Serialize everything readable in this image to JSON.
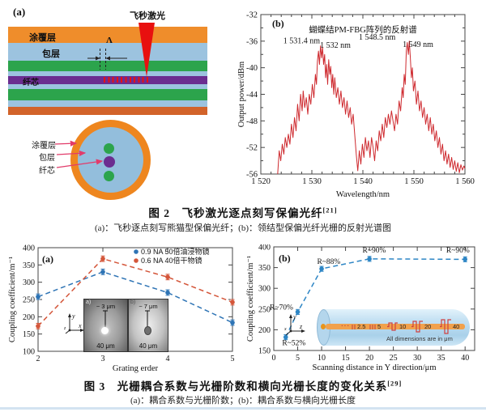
{
  "colors": {
    "coating_orange": "#EF8D2B",
    "coating_dark": "#D2632A",
    "cladding_blue": "#9CC3DF",
    "stress_green": "#2CA44C",
    "core_purple": "#6B2D90",
    "laser_red": "#E8100F",
    "spectrum_red": "#CE2A2F",
    "series_blue": "#2E74B5",
    "series_red": "#D4563A",
    "series_blue_b": "#2E86C5",
    "annotation_arrow_pink": "#E23B6A"
  },
  "fig2": {
    "panel_a_label": "(a)",
    "diagram": {
      "laser_label": "飞秒激光",
      "period_symbol": "Λ",
      "layer_coating": "涂覆层",
      "layer_cladding": "包层",
      "layer_core": "纤芯",
      "cross_coating": "涂覆层",
      "cross_cladding": "包层",
      "cross_core": "纤芯"
    },
    "caption": {
      "fig_no": "图 2",
      "title": "飞秒激光逐点刻写保偏光纤",
      "ref": "[21]",
      "sub": "(a)：飞秒逐点刻写熊猫型保偏光纤；(b)：领结型保偏光纤光栅的反射光谱图"
    }
  },
  "fig3": {
    "caption": {
      "fig_no": "图 3",
      "title": "光栅耦合系数与光栅阶数和横向光栅长度的变化关系",
      "ref": "[29]",
      "sub": "(a)：耦合系数与光栅阶数；(b)：耦合系数与横向光栅长度"
    }
  },
  "chart_data": [
    {
      "id": "pmfbg-reflection-spectrum",
      "type": "line",
      "panel_label": "(b)",
      "title": "蝴蝶结PM-FBG阵列的反射谱",
      "xlabel": "Wavelength/nm",
      "ylabel": "Output power/dBm",
      "xlim": [
        1520,
        1560
      ],
      "ylim": [
        -56,
        -32
      ],
      "xticks": [
        1520,
        1530,
        1540,
        1550,
        1560
      ],
      "xtick_labels": [
        "1 520",
        "1 530",
        "1 540",
        "1 550",
        "1 560"
      ],
      "yticks": [
        -32,
        -36,
        -40,
        -44,
        -48,
        -52,
        -56
      ],
      "grid": false,
      "legend": "none",
      "line_color": "#CE2A2F",
      "annotations": [
        {
          "text": "1 531.4 nm",
          "x": 1528.0,
          "y": -36.3
        },
        {
          "text": "1 532 nm",
          "x": 1534.6,
          "y": -37.0
        },
        {
          "text": "1 548.5 nm",
          "x": 1542.8,
          "y": -35.8
        },
        {
          "text": "1 549 nm",
          "x": 1550.8,
          "y": -36.9
        }
      ],
      "points": [
        [
          1523.3,
          -56
        ],
        [
          1523.6,
          -52.5
        ],
        [
          1523.9,
          -54
        ],
        [
          1524.2,
          -51.5
        ],
        [
          1524.5,
          -53
        ],
        [
          1524.8,
          -50.5
        ],
        [
          1525.1,
          -52
        ],
        [
          1525.4,
          -50
        ],
        [
          1525.7,
          -51.5
        ],
        [
          1526,
          -48.5
        ],
        [
          1526.3,
          -50.5
        ],
        [
          1526.6,
          -47.5
        ],
        [
          1526.9,
          -49.5
        ],
        [
          1527.2,
          -45.5
        ],
        [
          1527.5,
          -48
        ],
        [
          1527.8,
          -44
        ],
        [
          1528.1,
          -46.5
        ],
        [
          1528.3,
          -43.5
        ],
        [
          1528.6,
          -46
        ],
        [
          1528.9,
          -44.5
        ],
        [
          1529.2,
          -47
        ],
        [
          1529.5,
          -44
        ],
        [
          1529.8,
          -45.5
        ],
        [
          1530.1,
          -42.5
        ],
        [
          1530.4,
          -44.5
        ],
        [
          1530.7,
          -41
        ],
        [
          1530.9,
          -42.5
        ],
        [
          1531.1,
          -39
        ],
        [
          1531.3,
          -37.5
        ],
        [
          1531.5,
          -39.5
        ],
        [
          1531.7,
          -36.7
        ],
        [
          1531.9,
          -38.5
        ],
        [
          1532.1,
          -36.9
        ],
        [
          1532.3,
          -39.5
        ],
        [
          1532.5,
          -38
        ],
        [
          1532.7,
          -41.5
        ],
        [
          1532.9,
          -39.5
        ],
        [
          1533.1,
          -42.5
        ],
        [
          1533.3,
          -38.8
        ],
        [
          1533.5,
          -41
        ],
        [
          1533.7,
          -39.8
        ],
        [
          1533.9,
          -43
        ],
        [
          1534.1,
          -41
        ],
        [
          1534.3,
          -44
        ],
        [
          1534.5,
          -41.5
        ],
        [
          1534.8,
          -44.5
        ],
        [
          1535.1,
          -43
        ],
        [
          1535.4,
          -45.5
        ],
        [
          1535.7,
          -43.5
        ],
        [
          1536,
          -46
        ],
        [
          1536.3,
          -44.5
        ],
        [
          1536.6,
          -47
        ],
        [
          1536.9,
          -45
        ],
        [
          1537.2,
          -47.5
        ],
        [
          1537.5,
          -46
        ],
        [
          1537.8,
          -48.5
        ],
        [
          1538.1,
          -47
        ],
        [
          1538.4,
          -50
        ],
        [
          1538.7,
          -53
        ],
        [
          1539,
          -55.5
        ],
        [
          1539.3,
          -52.5
        ],
        [
          1539.6,
          -54.5
        ],
        [
          1539.9,
          -51.5
        ],
        [
          1540.2,
          -53.5
        ],
        [
          1540.5,
          -50.5
        ],
        [
          1540.8,
          -52.5
        ],
        [
          1541.1,
          -51
        ],
        [
          1541.4,
          -53.5
        ],
        [
          1541.7,
          -50.5
        ],
        [
          1542,
          -52
        ],
        [
          1542.3,
          -54
        ],
        [
          1542.6,
          -51
        ],
        [
          1542.9,
          -52.5
        ],
        [
          1543.2,
          -49.5
        ],
        [
          1543.5,
          -51
        ],
        [
          1543.8,
          -48.5
        ],
        [
          1544.1,
          -50.5
        ],
        [
          1544.4,
          -47.5
        ],
        [
          1544.7,
          -49
        ],
        [
          1545,
          -47
        ],
        [
          1545.3,
          -48.5
        ],
        [
          1545.6,
          -46.5
        ],
        [
          1545.9,
          -48
        ],
        [
          1546.2,
          -49.5
        ],
        [
          1546.5,
          -47
        ],
        [
          1546.8,
          -48.5
        ],
        [
          1547.1,
          -45
        ],
        [
          1547.4,
          -46.5
        ],
        [
          1547.7,
          -43
        ],
        [
          1547.9,
          -44.5
        ],
        [
          1548.1,
          -41
        ],
        [
          1548.3,
          -42.5
        ],
        [
          1548.5,
          -37.5
        ],
        [
          1548.7,
          -36.2
        ],
        [
          1548.9,
          -38
        ],
        [
          1549.1,
          -36
        ],
        [
          1549.3,
          -38.5
        ],
        [
          1549.5,
          -41.5
        ],
        [
          1549.7,
          -40
        ],
        [
          1549.9,
          -43.5
        ],
        [
          1550.2,
          -42
        ],
        [
          1550.5,
          -45.5
        ],
        [
          1550.8,
          -43.5
        ],
        [
          1551.1,
          -46.5
        ],
        [
          1551.4,
          -45
        ],
        [
          1551.7,
          -47.5
        ],
        [
          1552,
          -46
        ],
        [
          1552.3,
          -48.5
        ],
        [
          1552.6,
          -47
        ],
        [
          1552.9,
          -49.5
        ],
        [
          1553.2,
          -47.5
        ],
        [
          1553.5,
          -50
        ],
        [
          1553.8,
          -48.5
        ],
        [
          1554.1,
          -51
        ],
        [
          1554.4,
          -49.5
        ],
        [
          1554.7,
          -52
        ],
        [
          1555,
          -50.5
        ],
        [
          1555.3,
          -53
        ],
        [
          1555.6,
          -51.5
        ],
        [
          1555.9,
          -54
        ],
        [
          1556.2,
          -52.5
        ],
        [
          1556.5,
          -54.5
        ],
        [
          1556.8,
          -53
        ],
        [
          1557.1,
          -55
        ],
        [
          1557.4,
          -53.5
        ],
        [
          1557.7,
          -55.3
        ],
        [
          1558,
          -54
        ],
        [
          1558.3,
          -55.6
        ],
        [
          1558.6,
          -54.3
        ],
        [
          1558.9,
          -55.8
        ],
        [
          1559.2,
          -54.6
        ],
        [
          1559.5,
          -55.4
        ],
        [
          1559.8,
          -54.8
        ],
        [
          1560,
          -55.2
        ]
      ]
    },
    {
      "id": "coupling-vs-grating-order",
      "type": "line",
      "panel_label": "(a)",
      "xlabel": "Grating erder",
      "ylabel": "Coupling coefficient/m⁻¹",
      "xlim": [
        2,
        5
      ],
      "ylim": [
        100,
        400
      ],
      "xticks": [
        2,
        3,
        4,
        5
      ],
      "yticks": [
        100,
        150,
        200,
        250,
        300,
        350,
        400
      ],
      "grid": false,
      "legend_position": "top-right-inside",
      "series": [
        {
          "name": "0.9 NA 50倍油浸物镜",
          "color": "#2E74B5",
          "x": [
            2,
            3,
            4,
            5
          ],
          "values": [
            258,
            330,
            270,
            183
          ],
          "err": 8
        },
        {
          "name": "0.6 NA 40倍干物镜",
          "color": "#D4563A",
          "x": [
            2,
            3,
            4,
            5
          ],
          "values": [
            173,
            368,
            315,
            242
          ],
          "err": 8
        }
      ],
      "inset": {
        "a_tag": "a)",
        "a_top": "~ 3 μm",
        "a_bottom": "40 μm",
        "b_tag": "b)",
        "b_top": "~ 7 μm",
        "b_bottom": "40 μm",
        "ax_y": "y",
        "ax_x": "x",
        "ax_z": "z"
      }
    },
    {
      "id": "coupling-vs-scanning-distance",
      "type": "line",
      "panel_label": "(b)",
      "xlabel": "Scanning distance in Y direction/μm",
      "ylabel": "Coupling coefficient/m⁻¹",
      "xlim": [
        0,
        42
      ],
      "ylim": [
        150,
        400
      ],
      "xticks": [
        0,
        5,
        10,
        15,
        20,
        25,
        30,
        35,
        40
      ],
      "yticks": [
        150,
        200,
        250,
        300,
        350,
        400
      ],
      "grid": false,
      "series": [
        {
          "name": "coupling coefficient",
          "color": "#2E86C5",
          "x": [
            2.5,
            5,
            10,
            20,
            40
          ],
          "values": [
            182,
            243,
            347,
            371,
            370
          ],
          "err": 6
        }
      ],
      "point_labels": [
        {
          "text": "R~52%",
          "x": 4.2,
          "y": 163
        },
        {
          "text": "R~70%",
          "x": 1.6,
          "y": 249
        },
        {
          "text": "R~88%",
          "x": 11.5,
          "y": 359
        },
        {
          "text": "R~90%",
          "x": 21.0,
          "y": 386
        },
        {
          "text": "R~90%",
          "x": 38.5,
          "y": 386
        }
      ],
      "inset": {
        "dots": "···",
        "d1": "2.5",
        "d2": "5",
        "d3": "10",
        "d4": "20",
        "d5": "40",
        "note": "All dimensions are in μm",
        "ax_y": "y",
        "ax_x": "x",
        "ax_z": "z"
      }
    }
  ]
}
